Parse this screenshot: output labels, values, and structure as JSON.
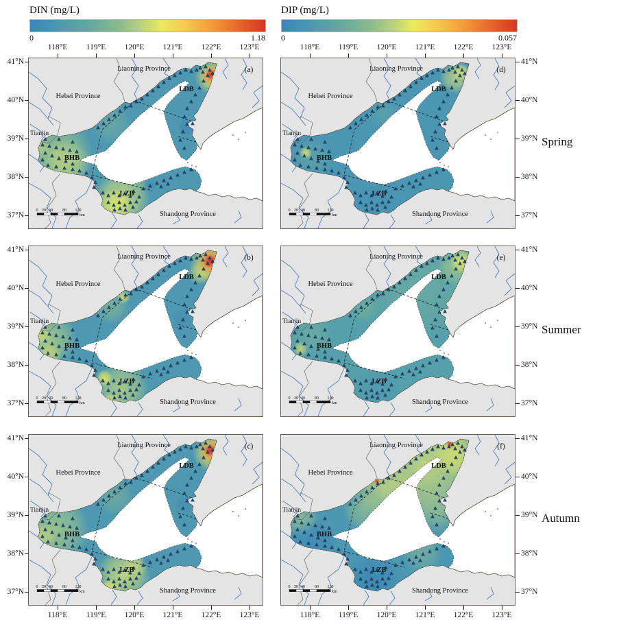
{
  "colorbars": [
    {
      "title": "DIN (mg/L)",
      "min": "0",
      "max": "1.18"
    },
    {
      "title": "DIP (mg/L)",
      "min": "0",
      "max": "0.057"
    }
  ],
  "gradient_stops": [
    [
      "0%",
      "#3a86bb"
    ],
    [
      "12%",
      "#4c98b0"
    ],
    [
      "25%",
      "#63a8a0"
    ],
    [
      "38%",
      "#8cbb8b"
    ],
    [
      "48%",
      "#bcd47b"
    ],
    [
      "56%",
      "#ece960"
    ],
    [
      "66%",
      "#f6c94e"
    ],
    [
      "77%",
      "#f19d3c"
    ],
    [
      "88%",
      "#e76a2e"
    ],
    [
      "100%",
      "#d53723"
    ]
  ],
  "x_ticks": [
    "118°E",
    "119°E",
    "120°E",
    "121°E",
    "122°E",
    "123°E"
  ],
  "y_ticks": [
    "41°N",
    "40°N",
    "39°N",
    "38°N",
    "37°N"
  ],
  "seasons": [
    "Spring",
    "Summer",
    "Autumn"
  ],
  "map_labels": {
    "liaoning": "Liaoning Province",
    "hebei": "Hebei Province",
    "tianjin": "Tianjin",
    "shandong": "Shandong Province",
    "ldb": "LDB",
    "bhb": "BHB",
    "lzb": "LZB"
  },
  "scalebar": {
    "ticks": [
      "0",
      "20",
      "40",
      "80",
      "120"
    ],
    "unit": "km"
  },
  "station_color": "#24466b",
  "stations": [
    [
      250,
      14
    ],
    [
      258,
      12
    ],
    [
      264,
      17
    ],
    [
      268,
      22
    ],
    [
      261,
      25
    ],
    [
      254,
      20
    ],
    [
      245,
      17
    ],
    [
      237,
      19
    ],
    [
      229,
      17
    ],
    [
      221,
      21
    ],
    [
      213,
      25
    ],
    [
      205,
      29
    ],
    [
      197,
      35
    ],
    [
      189,
      41
    ],
    [
      181,
      47
    ],
    [
      173,
      53
    ],
    [
      165,
      59
    ],
    [
      157,
      63
    ],
    [
      149,
      69
    ],
    [
      141,
      71
    ],
    [
      133,
      77
    ],
    [
      125,
      83
    ],
    [
      117,
      89
    ],
    [
      109,
      95
    ],
    [
      101,
      101
    ],
    [
      255,
      33
    ],
    [
      249,
      43
    ],
    [
      243,
      53
    ],
    [
      237,
      63
    ],
    [
      231,
      73
    ],
    [
      227,
      85
    ],
    [
      231,
      96
    ],
    [
      239,
      95
    ],
    [
      225,
      107
    ],
    [
      221,
      119
    ],
    [
      227,
      131
    ],
    [
      24,
      118
    ],
    [
      44,
      118
    ],
    [
      64,
      122
    ],
    [
      20,
      126
    ],
    [
      30,
      128
    ],
    [
      40,
      130
    ],
    [
      50,
      132
    ],
    [
      60,
      134
    ],
    [
      70,
      136
    ],
    [
      24,
      138
    ],
    [
      34,
      142
    ],
    [
      44,
      146
    ],
    [
      54,
      150
    ],
    [
      64,
      154
    ],
    [
      20,
      148
    ],
    [
      28,
      156
    ],
    [
      40,
      158
    ],
    [
      52,
      160
    ],
    [
      64,
      162
    ],
    [
      74,
      164
    ],
    [
      84,
      167
    ],
    [
      92,
      174
    ],
    [
      97,
      181
    ],
    [
      95,
      188
    ],
    [
      108,
      196
    ],
    [
      116,
      200
    ],
    [
      124,
      196
    ],
    [
      132,
      200
    ],
    [
      140,
      197
    ],
    [
      148,
      201
    ],
    [
      116,
      210
    ],
    [
      124,
      214
    ],
    [
      132,
      210
    ],
    [
      140,
      214
    ],
    [
      148,
      210
    ],
    [
      125,
      221
    ],
    [
      133,
      219
    ],
    [
      141,
      221
    ],
    [
      152,
      217
    ],
    [
      157,
      209
    ],
    [
      161,
      202
    ],
    [
      153,
      194
    ],
    [
      167,
      190
    ],
    [
      177,
      186
    ],
    [
      187,
      182
    ],
    [
      197,
      178
    ],
    [
      207,
      174
    ],
    [
      217,
      170
    ],
    [
      227,
      166
    ],
    [
      237,
      162
    ],
    [
      193,
      187
    ],
    [
      203,
      183
    ]
  ],
  "panels": [
    {
      "letter": "(a)",
      "nutrient": "DIN",
      "season": "Spring",
      "base": "#4e99b1",
      "spots": [
        [
          40,
          140,
          55,
          "#9cc489",
          0.85
        ],
        [
          55,
          152,
          35,
          "#c6d87b",
          0.7
        ],
        [
          16,
          130,
          16,
          "#cdd976",
          0.55
        ],
        [
          120,
          95,
          30,
          "#7fb49a",
          0.5
        ],
        [
          135,
          205,
          42,
          "#cdda78",
          0.9
        ],
        [
          125,
          215,
          25,
          "#e2e56c",
          0.75
        ],
        [
          160,
          186,
          16,
          "#8cbb8e",
          0.55
        ],
        [
          230,
          100,
          14,
          "#3a7fb0",
          0.55
        ],
        [
          176,
          186,
          9,
          "#3a7fb0",
          0.5
        ],
        [
          268,
          27,
          26,
          "#e9e25e",
          0.85
        ],
        [
          267,
          25,
          16,
          "#f0953c",
          0.95
        ],
        [
          266,
          24,
          8,
          "#d93a24",
          1
        ]
      ]
    },
    {
      "letter": "(b)",
      "nutrient": "DIN",
      "season": "Summer",
      "base": "#4e99b1",
      "spots": [
        [
          30,
          135,
          40,
          "#a9cb85",
          0.85
        ],
        [
          14,
          128,
          18,
          "#d8e06e",
          0.8
        ],
        [
          28,
          158,
          20,
          "#cdda74",
          0.75
        ],
        [
          120,
          88,
          26,
          "#96c18c",
          0.55
        ],
        [
          138,
          74,
          10,
          "#e8e565",
          0.8
        ],
        [
          135,
          208,
          40,
          "#b5d080",
          0.85
        ],
        [
          110,
          192,
          12,
          "#ece75f",
          0.85
        ],
        [
          120,
          228,
          14,
          "#dfe369",
          0.8
        ],
        [
          225,
          105,
          18,
          "#3f86b2",
          0.5
        ],
        [
          248,
          40,
          16,
          "#cfd972",
          0.6
        ],
        [
          266,
          25,
          32,
          "#e9e05c",
          0.85
        ],
        [
          266,
          23,
          20,
          "#ef8d38",
          0.92
        ],
        [
          265,
          22,
          10,
          "#d43424",
          1
        ]
      ]
    },
    {
      "letter": "(c)",
      "nutrient": "DIN",
      "season": "Autumn",
      "base": "#4e99b1",
      "spots": [
        [
          38,
          138,
          50,
          "#a5c987",
          0.85
        ],
        [
          18,
          150,
          22,
          "#ccd976",
          0.7
        ],
        [
          125,
          90,
          28,
          "#8abb92",
          0.5
        ],
        [
          138,
          205,
          40,
          "#c8d87a",
          0.9
        ],
        [
          118,
          226,
          16,
          "#eae763",
          0.85
        ],
        [
          155,
          192,
          18,
          "#d5df71",
          0.6
        ],
        [
          228,
          102,
          15,
          "#3f86b2",
          0.5
        ],
        [
          172,
          184,
          8,
          "#3f86b2",
          0.5
        ],
        [
          267,
          26,
          28,
          "#e9e05c",
          0.85
        ],
        [
          266,
          24,
          17,
          "#f0953c",
          0.9
        ],
        [
          265,
          23,
          9,
          "#d93a24",
          1
        ]
      ]
    },
    {
      "letter": "(d)",
      "nutrient": "DIP",
      "season": "Spring",
      "base": "#4b96b3",
      "spots": [
        [
          150,
          80,
          25,
          "#74afa0",
          0.35
        ],
        [
          45,
          145,
          30,
          "#6fab9f",
          0.45
        ],
        [
          36,
          138,
          9,
          "#e0e36c",
          0.85
        ],
        [
          135,
          210,
          35,
          "#4691b4",
          0.5
        ],
        [
          255,
          28,
          24,
          "#c9d77c",
          0.8
        ],
        [
          263,
          20,
          12,
          "#e2e468",
          0.7
        ]
      ]
    },
    {
      "letter": "(e)",
      "nutrient": "DIP",
      "season": "Summer",
      "base": "#55a0ab",
      "spots": [
        [
          200,
          60,
          80,
          "#84b794",
          0.4
        ],
        [
          120,
          90,
          22,
          "#8abb90",
          0.45
        ],
        [
          45,
          130,
          30,
          "#7cb398",
          0.5
        ],
        [
          28,
          150,
          11,
          "#d8e070",
          0.75
        ],
        [
          140,
          210,
          38,
          "#4c96b0",
          0.55
        ],
        [
          256,
          30,
          28,
          "#b8d184",
          0.6
        ],
        [
          264,
          22,
          18,
          "#e4e466",
          0.85
        ]
      ]
    },
    {
      "letter": "(f)",
      "nutrient": "DIP",
      "season": "Autumn",
      "base": "#4c97b2",
      "spots": [
        [
          210,
          45,
          85,
          "#c9d878",
          0.9
        ],
        [
          150,
          78,
          45,
          "#c2d57c",
          0.8
        ],
        [
          255,
          28,
          35,
          "#dde26b",
          0.8
        ],
        [
          120,
          110,
          30,
          "#a6c985",
          0.6
        ],
        [
          228,
          112,
          32,
          "#9dc489",
          0.6
        ],
        [
          205,
          172,
          30,
          "#8cbc90",
          0.55
        ],
        [
          30,
          122,
          25,
          "#a9cb85",
          0.6
        ],
        [
          48,
          158,
          35,
          "#4189b4",
          0.8
        ],
        [
          135,
          212,
          42,
          "#3d88b5",
          0.9
        ],
        [
          247,
          13,
          8,
          "#f0a03e",
          0.6
        ],
        [
          246,
          13,
          4,
          "#d53723",
          0.95
        ],
        [
          140,
          68,
          7,
          "#f0a03e",
          0.55
        ],
        [
          140,
          68,
          3.5,
          "#d53723",
          0.95
        ]
      ]
    }
  ]
}
